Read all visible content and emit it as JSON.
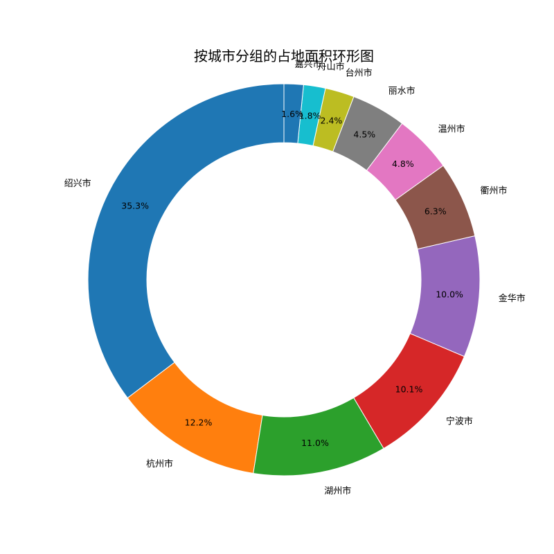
{
  "chart_data": {
    "type": "pie",
    "variant": "donut",
    "title": "按城市分组的占地面积环形图",
    "start_angle_deg": 90,
    "direction": "counterclockwise",
    "categories": [
      "绍兴市",
      "杭州市",
      "湖州市",
      "宁波市",
      "金华市",
      "衢州市",
      "温州市",
      "丽水市",
      "台州市",
      "舟山市",
      "嘉兴市"
    ],
    "values": [
      35.3,
      12.2,
      11.0,
      10.1,
      10.0,
      6.3,
      4.8,
      4.5,
      2.4,
      1.8,
      1.6
    ],
    "value_labels": [
      "35.3%",
      "12.2%",
      "11.0%",
      "10.1%",
      "10.0%",
      "6.3%",
      "4.8%",
      "4.5%",
      "2.4%",
      "1.8%",
      "1.6%"
    ],
    "colors": [
      "#1f77b4",
      "#ff7f0e",
      "#2ca02c",
      "#d62728",
      "#9467bd",
      "#8c564b",
      "#e377c2",
      "#7f7f7f",
      "#bcbd22",
      "#17becf",
      "#1f77b4"
    ],
    "legend": "none"
  }
}
